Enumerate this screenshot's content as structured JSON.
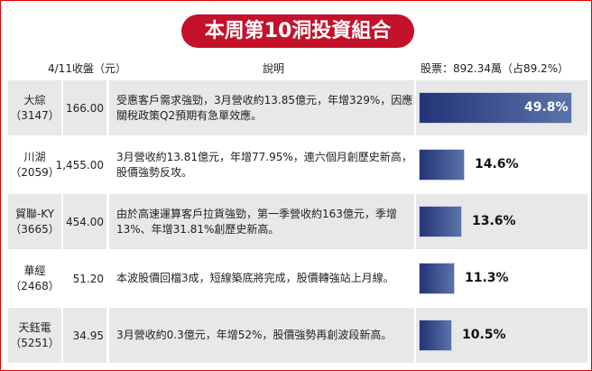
{
  "title": "本周第10洞投資組合",
  "headers": {
    "close": "4/11收盤（元）",
    "desc": "說明",
    "stocks": "股票：892.34萬（占89.2%）"
  },
  "colors": {
    "title_bg": "#c4122b",
    "bar_start": "#233377",
    "bar_end": "#5b73aa",
    "row_gray": "#e8e8e8"
  },
  "chart_data": {
    "type": "bar",
    "orientation": "horizontal",
    "categories": [
      "大綜（3147）",
      "川湖（2059）",
      "貿聯-KY（3665）",
      "華經（2468）",
      "天鈺電（5251）"
    ],
    "values": [
      49.8,
      14.6,
      13.6,
      11.3,
      10.5
    ],
    "value_labels": [
      "49.8%",
      "14.6%",
      "13.6%",
      "11.3%",
      "10.5%"
    ]
  },
  "rows": [
    {
      "name": "大綜",
      "code": "（3147）",
      "close": "166.00",
      "desc": "受惠客戶需求強勁，3月營收約13.85億元，年增329%，因應關稅政策Q2預期有急單效應。",
      "pct": "49.8%",
      "value": 49.8
    },
    {
      "name": "川湖",
      "code": "（2059）",
      "close": "1,455.00",
      "desc": "3月營收約13.81億元，年增77.95%，連六個月創歷史新高，股價強勢反攻。",
      "pct": "14.6%",
      "value": 14.6
    },
    {
      "name": "貿聯-KY",
      "code": "（3665）",
      "close": "454.00",
      "desc": "由於高速運算客戶拉貨強勁，第一季營收約163億元，季增13%、年增31.81%創歷史新高。",
      "pct": "13.6%",
      "value": 13.6
    },
    {
      "name": "華經",
      "code": "（2468）",
      "close": "51.20",
      "desc": "本波股價回檔3成，短線築底將完成，股價轉強站上月線。",
      "pct": "11.3%",
      "value": 11.3
    },
    {
      "name": "天鈺電",
      "code": "（5251）",
      "close": "34.95",
      "desc": "3月營收約0.3億元，年增52%，股價強勢再創波段新高。",
      "pct": "10.5%",
      "value": 10.5
    }
  ]
}
